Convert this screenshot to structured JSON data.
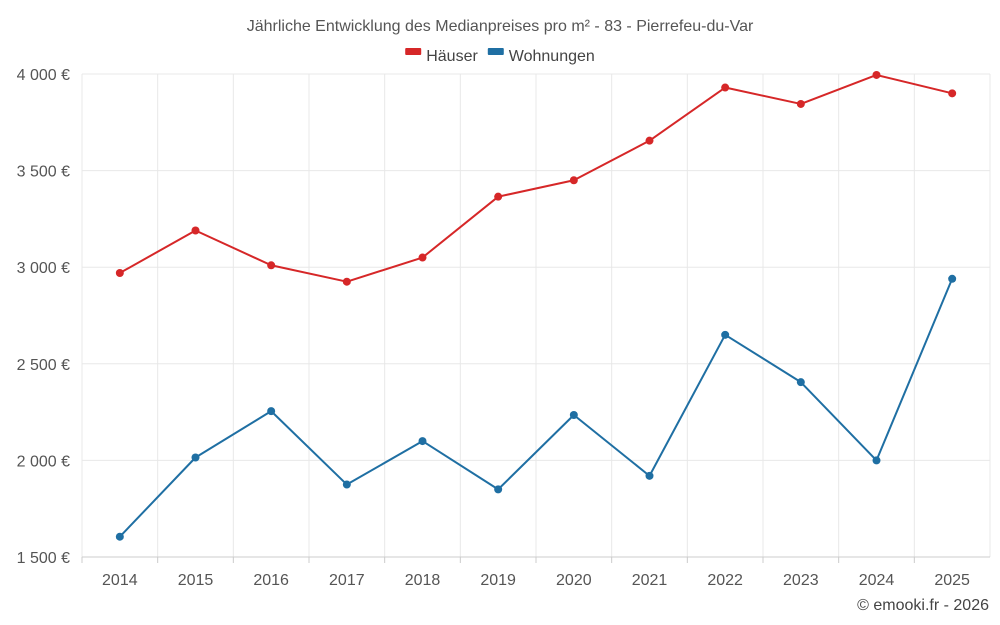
{
  "chart_data": {
    "type": "line",
    "title": "Jährliche Entwicklung des Medianpreises pro m² - 83 - Pierrefeu-du-Var",
    "categories": [
      "2014",
      "2015",
      "2016",
      "2017",
      "2018",
      "2019",
      "2020",
      "2021",
      "2022",
      "2023",
      "2024",
      "2025"
    ],
    "series": [
      {
        "name": "Häuser",
        "color": "#d62728",
        "values": [
          2970,
          3190,
          3010,
          2925,
          3050,
          3365,
          3450,
          3655,
          3930,
          3845,
          3995,
          3900
        ]
      },
      {
        "name": "Wohnungen",
        "color": "#1f6fa3",
        "values": [
          1605,
          2015,
          2255,
          1875,
          2100,
          1850,
          2235,
          1920,
          2650,
          2405,
          2000,
          2940
        ]
      }
    ],
    "yticks": [
      1500,
      2000,
      2500,
      3000,
      3500,
      4000
    ],
    "ytick_labels": [
      "1 500 €",
      "2 000 €",
      "2 500 €",
      "3 000 €",
      "3 500 €",
      "4 000 €"
    ],
    "ylim": [
      1500,
      4000
    ],
    "xlabel": "",
    "ylabel": "",
    "legend_position": "top-center",
    "grid": true
  },
  "credit": "© emooki.fr - 2026"
}
